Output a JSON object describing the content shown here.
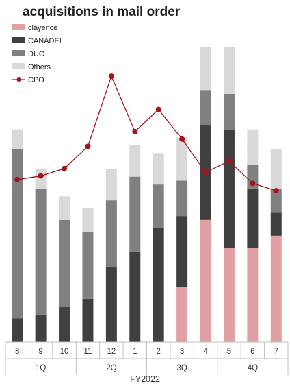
{
  "chart_data": {
    "type": "bar",
    "stacked": true,
    "title": "acquisitions in mail order",
    "xlabel": "FY2022",
    "ylabel": "",
    "categories": [
      "8",
      "9",
      "10",
      "11",
      "12",
      "1",
      "2",
      "3",
      "4",
      "5",
      "6",
      "7"
    ],
    "groups": [
      {
        "label": "1Q",
        "start": 0,
        "end": 2
      },
      {
        "label": "2Q",
        "start": 3,
        "end": 5
      },
      {
        "label": "3Q",
        "start": 6,
        "end": 8
      },
      {
        "label": "4Q",
        "start": 9,
        "end": 11
      }
    ],
    "series": [
      {
        "name": "clayence",
        "color": "#e0a0a4",
        "values": [
          0,
          0,
          0,
          0,
          0,
          0,
          0,
          14,
          31,
          24,
          24,
          27
        ]
      },
      {
        "name": "CANADEL",
        "color": "#404040",
        "values": [
          6,
          7,
          9,
          11,
          19,
          23,
          29,
          18,
          24,
          30,
          15,
          6
        ]
      },
      {
        "name": "DUO",
        "color": "#808080",
        "values": [
          43,
          32,
          22,
          17,
          17,
          19,
          11,
          9,
          9,
          9,
          6,
          6
        ]
      },
      {
        "name": "Others",
        "color": "#d9d9d9",
        "values": [
          5,
          5,
          6,
          6,
          8,
          8,
          8,
          11,
          11,
          12,
          9,
          10
        ]
      }
    ],
    "line_series": {
      "name": "CPO",
      "color": "#a3141f",
      "values": [
        44,
        45,
        47,
        53,
        72,
        57,
        63,
        55,
        46,
        49,
        43,
        41
      ]
    },
    "ylim": [
      0,
      75
    ],
    "line_ylim": [
      0,
      80
    ],
    "grid": false,
    "legend_position": "top-left"
  }
}
